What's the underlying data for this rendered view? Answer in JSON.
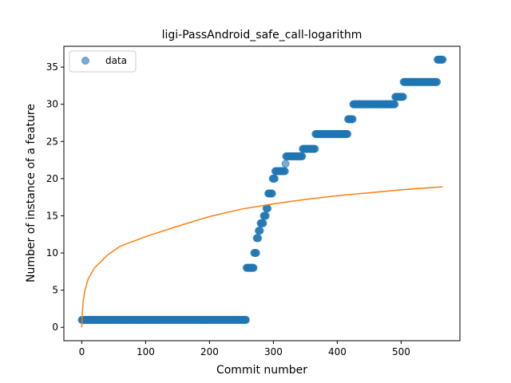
{
  "chart_data": {
    "type": "scatter",
    "title": "ligi-PassAndroid_safe_call-logarithm",
    "xlabel": "Commit number",
    "ylabel": "Number of instance of a feature",
    "xlim": [
      -28,
      592
    ],
    "ylim": [
      -1.8,
      37.8
    ],
    "xticks": [
      0,
      100,
      200,
      300,
      400,
      500
    ],
    "yticks": [
      0,
      5,
      10,
      15,
      20,
      25,
      30,
      35
    ],
    "grid": false,
    "legend": {
      "placement": "top-left",
      "entries": [
        "data"
      ]
    },
    "colors": {
      "scatter": "#1f77b4",
      "fit": "#ff7f0e"
    },
    "series": [
      {
        "name": "data",
        "kind": "scatter",
        "runs": [
          {
            "x_start": 0,
            "x_end": 257,
            "y": 1
          },
          {
            "x_start": 258,
            "x_end": 269,
            "y": 8
          },
          {
            "x_start": 270,
            "x_end": 273,
            "y": 10
          },
          {
            "x_start": 274,
            "x_end": 276,
            "y": 12
          },
          {
            "x_start": 277,
            "x_end": 279,
            "y": 13
          },
          {
            "x_start": 280,
            "x_end": 284,
            "y": 14
          },
          {
            "x_start": 285,
            "x_end": 288,
            "y": 15
          },
          {
            "x_start": 289,
            "x_end": 291,
            "y": 16
          },
          {
            "x_start": 292,
            "x_end": 298,
            "y": 18
          },
          {
            "x_start": 299,
            "x_end": 302,
            "y": 20
          },
          {
            "x_start": 303,
            "x_end": 318,
            "y": 21
          },
          {
            "x_start": 319,
            "x_end": 319,
            "y": 22
          },
          {
            "x_start": 320,
            "x_end": 345,
            "y": 23
          },
          {
            "x_start": 346,
            "x_end": 365,
            "y": 24
          },
          {
            "x_start": 366,
            "x_end": 416,
            "y": 26
          },
          {
            "x_start": 417,
            "x_end": 424,
            "y": 28
          },
          {
            "x_start": 425,
            "x_end": 490,
            "y": 30
          },
          {
            "x_start": 491,
            "x_end": 503,
            "y": 31
          },
          {
            "x_start": 504,
            "x_end": 556,
            "y": 33
          },
          {
            "x_start": 557,
            "x_end": 565,
            "y": 36
          }
        ]
      },
      {
        "kind": "line",
        "model": "log",
        "points": [
          [
            0,
            0
          ],
          [
            1,
            2.15
          ],
          [
            2,
            3.4
          ],
          [
            5,
            5.0
          ],
          [
            10,
            6.5
          ],
          [
            20,
            8.0
          ],
          [
            40,
            9.7
          ],
          [
            60,
            10.9
          ],
          [
            100,
            12.2
          ],
          [
            150,
            13.6
          ],
          [
            200,
            14.9
          ],
          [
            250,
            15.9
          ],
          [
            300,
            16.6
          ],
          [
            350,
            17.2
          ],
          [
            400,
            17.7
          ],
          [
            450,
            18.1
          ],
          [
            500,
            18.5
          ],
          [
            565,
            18.9
          ]
        ]
      }
    ]
  }
}
